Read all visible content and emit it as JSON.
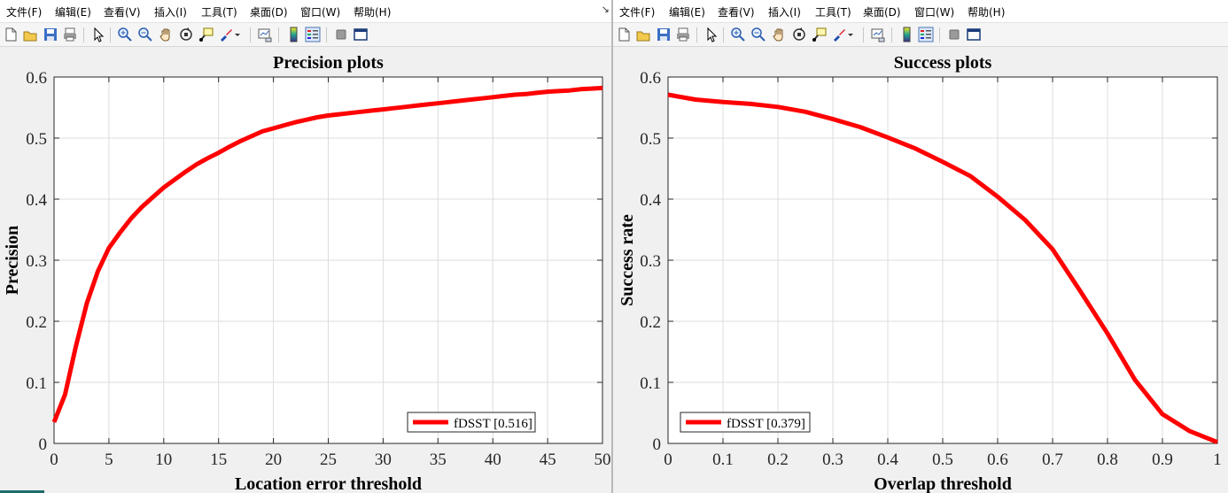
{
  "menu": [
    "文件(F)",
    "编辑(E)",
    "查看(V)",
    "插入(I)",
    "工具(T)",
    "桌面(D)",
    "窗口(W)",
    "帮助(H)"
  ],
  "resize_glyph": "↘",
  "toolbar_icons": [
    "new-figure-icon",
    "open-file-icon",
    "save-icon",
    "print-icon",
    "pointer-icon",
    "zoom-in-icon",
    "zoom-out-icon",
    "pan-hand-icon",
    "rotate-3d-icon",
    "data-cursor-icon",
    "brush-icon",
    "dropdown-arrow-icon",
    "link-plot-icon",
    "colorbar-icon",
    "legend-icon",
    "hide-plot-tools-icon",
    "show-plot-tools-icon"
  ],
  "colors": {
    "line": "#ff0000",
    "grid": "#dcdcdc",
    "axes_bg": "#ffffff",
    "figure_bg": "#f0f0f0"
  },
  "chart_data": [
    {
      "type": "line",
      "title": "Precision plots",
      "xlabel": "Location error threshold",
      "ylabel": "Precision",
      "xlim": [
        0,
        50
      ],
      "ylim": [
        0,
        0.6
      ],
      "xticks": [
        0,
        5,
        10,
        15,
        20,
        25,
        30,
        35,
        40,
        45,
        50
      ],
      "yticks": [
        0,
        0.1,
        0.2,
        0.3,
        0.4,
        0.5,
        0.6
      ],
      "grid": true,
      "legend_position": "bottom-right",
      "series": [
        {
          "name": "fDSST [0.516]",
          "color": "#ff0000",
          "x": [
            0,
            1,
            2,
            3,
            4,
            5,
            6,
            7,
            8,
            9,
            10,
            11,
            12,
            13,
            14,
            15,
            16,
            17,
            18,
            19,
            20,
            21,
            22,
            23,
            24,
            25,
            26,
            27,
            28,
            29,
            30,
            31,
            32,
            33,
            34,
            35,
            36,
            37,
            38,
            39,
            40,
            41,
            42,
            43,
            44,
            45,
            46,
            47,
            48,
            49,
            50
          ],
          "y": [
            0.035,
            0.08,
            0.16,
            0.23,
            0.282,
            0.32,
            0.345,
            0.368,
            0.387,
            0.403,
            0.419,
            0.432,
            0.445,
            0.457,
            0.467,
            0.476,
            0.486,
            0.495,
            0.503,
            0.511,
            0.516,
            0.521,
            0.526,
            0.53,
            0.534,
            0.537,
            0.539,
            0.541,
            0.543,
            0.545,
            0.547,
            0.549,
            0.551,
            0.553,
            0.555,
            0.557,
            0.559,
            0.561,
            0.563,
            0.565,
            0.567,
            0.569,
            0.571,
            0.572,
            0.574,
            0.576,
            0.577,
            0.578,
            0.58,
            0.581,
            0.582
          ]
        }
      ]
    },
    {
      "type": "line",
      "title": "Success plots",
      "xlabel": "Overlap threshold",
      "ylabel": "Success rate",
      "xlim": [
        0,
        1
      ],
      "ylim": [
        0,
        0.6
      ],
      "xticks": [
        0,
        0.1,
        0.2,
        0.3,
        0.4,
        0.5,
        0.6,
        0.7,
        0.8,
        0.9,
        1
      ],
      "yticks": [
        0,
        0.1,
        0.2,
        0.3,
        0.4,
        0.5,
        0.6
      ],
      "grid": true,
      "legend_position": "bottom-left",
      "series": [
        {
          "name": "fDSST [0.379]",
          "color": "#ff0000",
          "x": [
            0,
            0.05,
            0.1,
            0.15,
            0.2,
            0.25,
            0.3,
            0.35,
            0.4,
            0.45,
            0.5,
            0.55,
            0.6,
            0.65,
            0.7,
            0.75,
            0.8,
            0.85,
            0.9,
            0.95,
            1
          ],
          "y": [
            0.571,
            0.563,
            0.559,
            0.556,
            0.551,
            0.543,
            0.531,
            0.518,
            0.501,
            0.483,
            0.461,
            0.438,
            0.404,
            0.366,
            0.318,
            0.25,
            0.18,
            0.104,
            0.048,
            0.02,
            0.002
          ]
        }
      ]
    }
  ]
}
